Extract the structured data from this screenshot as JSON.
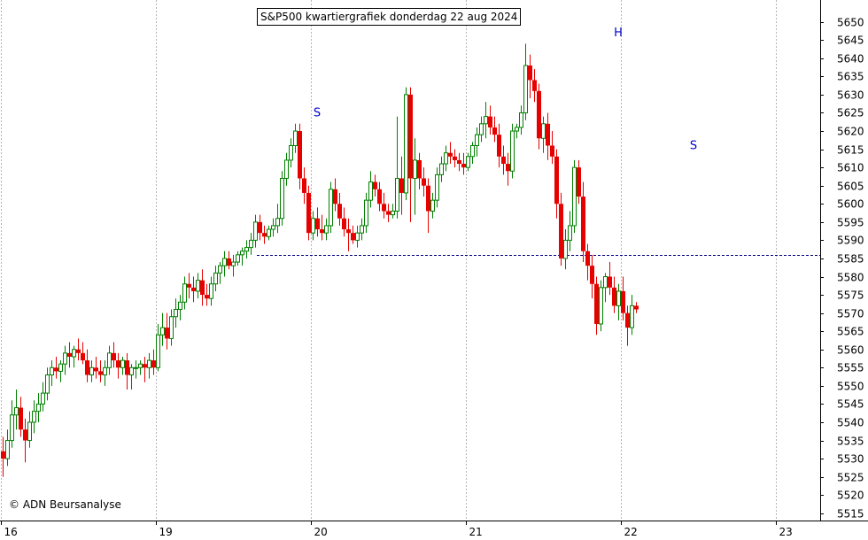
{
  "chart_data": {
    "type": "candlestick",
    "title": "S&P500 kwartiergrafiek donderdag 22 aug 2024",
    "copyright": "© ADN Beursanalyse",
    "ylim": [
      5513,
      5656
    ],
    "y_ticks": [
      5515,
      5520,
      5525,
      5530,
      5535,
      5540,
      5545,
      5550,
      5555,
      5560,
      5565,
      5570,
      5575,
      5580,
      5585,
      5590,
      5595,
      5600,
      5605,
      5610,
      5615,
      5620,
      5625,
      5630,
      5635,
      5640,
      5645,
      5650
    ],
    "x_day_labels": [
      {
        "label": "16",
        "index": 0
      },
      {
        "label": "19",
        "index": 35
      },
      {
        "label": "20",
        "index": 70
      },
      {
        "label": "21",
        "index": 105
      },
      {
        "label": "22",
        "index": 140
      },
      {
        "label": "23",
        "index": 175
      }
    ],
    "reference_line": 5586,
    "annotations": [
      {
        "text": "S",
        "index": 71,
        "value": 5624
      },
      {
        "text": "H",
        "index": 139,
        "value": 5646
      },
      {
        "text": "S",
        "index": 156,
        "value": 5615
      }
    ],
    "colors": {
      "up": "#008000",
      "down": "#e60000",
      "annotation": "#0000cc",
      "grid": "#b4b4b4",
      "reference": "#000080"
    },
    "ohlc": [
      [
        5532,
        5536,
        5525,
        5530
      ],
      [
        5530,
        5538,
        5528,
        5535
      ],
      [
        5535,
        5546,
        5533,
        5542
      ],
      [
        5542,
        5549,
        5538,
        5544
      ],
      [
        5544,
        5547,
        5536,
        5538
      ],
      [
        5538,
        5541,
        5529,
        5535
      ],
      [
        5535,
        5543,
        5533,
        5540
      ],
      [
        5540,
        5546,
        5537,
        5543
      ],
      [
        5543,
        5548,
        5540,
        5545
      ],
      [
        5545,
        5551,
        5543,
        5548
      ],
      [
        5548,
        5555,
        5546,
        5553
      ],
      [
        5553,
        5557,
        5550,
        5555
      ],
      [
        5555,
        5558,
        5552,
        5554
      ],
      [
        5554,
        5557,
        5551,
        5556
      ],
      [
        5556,
        5561,
        5553,
        5559
      ],
      [
        5559,
        5562,
        5555,
        5558
      ],
      [
        5558,
        5561,
        5555,
        5560
      ],
      [
        5560,
        5563,
        5557,
        5559
      ],
      [
        5559,
        5562,
        5556,
        5557
      ],
      [
        5557,
        5560,
        5551,
        5553
      ],
      [
        5553,
        5557,
        5551,
        5555
      ],
      [
        5555,
        5558,
        5552,
        5554
      ],
      [
        5554,
        5557,
        5551,
        5553
      ],
      [
        5553,
        5557,
        5550,
        5555
      ],
      [
        5555,
        5561,
        5553,
        5559
      ],
      [
        5559,
        5562,
        5555,
        5557
      ],
      [
        5557,
        5559,
        5552,
        5555
      ],
      [
        5555,
        5558,
        5553,
        5557
      ],
      [
        5557,
        5559,
        5549,
        5553
      ],
      [
        5553,
        5556,
        5549,
        5555
      ],
      [
        5555,
        5557,
        5552,
        5555
      ],
      [
        5555,
        5557,
        5553,
        5556
      ],
      [
        5556,
        5558,
        5551,
        5555
      ],
      [
        5555,
        5559,
        5552,
        5557
      ],
      [
        5557,
        5560,
        5553,
        5555
      ],
      [
        5555,
        5567,
        5554,
        5564
      ],
      [
        5564,
        5570,
        5561,
        5566
      ],
      [
        5566,
        5570,
        5560,
        5563
      ],
      [
        5563,
        5571,
        5561,
        5569
      ],
      [
        5569,
        5574,
        5566,
        5571
      ],
      [
        5571,
        5575,
        5568,
        5573
      ],
      [
        5573,
        5580,
        5571,
        5578
      ],
      [
        5578,
        5581,
        5574,
        5577
      ],
      [
        5577,
        5580,
        5573,
        5576
      ],
      [
        5576,
        5581,
        5574,
        5579
      ],
      [
        5579,
        5582,
        5572,
        5575
      ],
      [
        5575,
        5578,
        5572,
        5574
      ],
      [
        5574,
        5580,
        5572,
        5578
      ],
      [
        5578,
        5583,
        5576,
        5581
      ],
      [
        5581,
        5584,
        5578,
        5583
      ],
      [
        5583,
        5587,
        5580,
        5585
      ],
      [
        5585,
        5587,
        5582,
        5583
      ],
      [
        5583,
        5586,
        5580,
        5584
      ],
      [
        5584,
        5587,
        5583,
        5586
      ],
      [
        5586,
        5588,
        5583,
        5587
      ],
      [
        5587,
        5590,
        5585,
        5588
      ],
      [
        5588,
        5592,
        5586,
        5590
      ],
      [
        5590,
        5597,
        5588,
        5595
      ],
      [
        5595,
        5597,
        5590,
        5592
      ],
      [
        5592,
        5594,
        5589,
        5591
      ],
      [
        5591,
        5594,
        5590,
        5593
      ],
      [
        5593,
        5596,
        5591,
        5594
      ],
      [
        5594,
        5600,
        5592,
        5596
      ],
      [
        5596,
        5609,
        5594,
        5607
      ],
      [
        5607,
        5614,
        5605,
        5612
      ],
      [
        5612,
        5618,
        5610,
        5616
      ],
      [
        5616,
        5622,
        5614,
        5620
      ],
      [
        5620,
        5622,
        5604,
        5607
      ],
      [
        5607,
        5610,
        5600,
        5603
      ],
      [
        5603,
        5605,
        5590,
        5592
      ],
      [
        5592,
        5598,
        5590,
        5596
      ],
      [
        5596,
        5599,
        5591,
        5593
      ],
      [
        5593,
        5597,
        5590,
        5592
      ],
      [
        5592,
        5596,
        5590,
        5594
      ],
      [
        5594,
        5606,
        5592,
        5604
      ],
      [
        5604,
        5607,
        5598,
        5600
      ],
      [
        5600,
        5603,
        5594,
        5596
      ],
      [
        5596,
        5599,
        5591,
        5593
      ],
      [
        5593,
        5596,
        5587,
        5592
      ],
      [
        5592,
        5594,
        5589,
        5590
      ],
      [
        5590,
        5594,
        5588,
        5592
      ],
      [
        5592,
        5596,
        5590,
        5594
      ],
      [
        5594,
        5603,
        5592,
        5601
      ],
      [
        5601,
        5609,
        5599,
        5606
      ],
      [
        5606,
        5608,
        5602,
        5604
      ],
      [
        5604,
        5606,
        5598,
        5600
      ],
      [
        5600,
        5603,
        5596,
        5598
      ],
      [
        5598,
        5600,
        5595,
        5597
      ],
      [
        5597,
        5600,
        5596,
        5598
      ],
      [
        5598,
        5624,
        5596,
        5607
      ],
      [
        5607,
        5613,
        5597,
        5603
      ],
      [
        5603,
        5632,
        5601,
        5630
      ],
      [
        5630,
        5632,
        5595,
        5607
      ],
      [
        5607,
        5618,
        5597,
        5612
      ],
      [
        5612,
        5614,
        5604,
        5607
      ],
      [
        5607,
        5610,
        5602,
        5605
      ],
      [
        5605,
        5607,
        5592,
        5598
      ],
      [
        5598,
        5603,
        5596,
        5601
      ],
      [
        5601,
        5610,
        5599,
        5608
      ],
      [
        5608,
        5613,
        5606,
        5611
      ],
      [
        5611,
        5616,
        5609,
        5614
      ],
      [
        5614,
        5617,
        5611,
        5613
      ],
      [
        5613,
        5615,
        5610,
        5612
      ],
      [
        5612,
        5614,
        5609,
        5611
      ],
      [
        5611,
        5614,
        5608,
        5610
      ],
      [
        5610,
        5614,
        5609,
        5613
      ],
      [
        5613,
        5617,
        5611,
        5616
      ],
      [
        5616,
        5621,
        5613,
        5619
      ],
      [
        5619,
        5624,
        5617,
        5622
      ],
      [
        5622,
        5628,
        5618,
        5624
      ],
      [
        5624,
        5627,
        5619,
        5621
      ],
      [
        5621,
        5624,
        5617,
        5619
      ],
      [
        5619,
        5622,
        5610,
        5613
      ],
      [
        5613,
        5616,
        5608,
        5611
      ],
      [
        5611,
        5614,
        5605,
        5609
      ],
      [
        5609,
        5622,
        5607,
        5620
      ],
      [
        5620,
        5622,
        5618,
        5621
      ],
      [
        5621,
        5627,
        5619,
        5625
      ],
      [
        5625,
        5644,
        5623,
        5638
      ],
      [
        5638,
        5641,
        5629,
        5634
      ],
      [
        5634,
        5637,
        5628,
        5631
      ],
      [
        5631,
        5633,
        5615,
        5618
      ],
      [
        5618,
        5624,
        5614,
        5622
      ],
      [
        5622,
        5625,
        5612,
        5616
      ],
      [
        5616,
        5620,
        5611,
        5613
      ],
      [
        5613,
        5615,
        5596,
        5600
      ],
      [
        5600,
        5603,
        5583,
        5585
      ],
      [
        5585,
        5593,
        5582,
        5590
      ],
      [
        5590,
        5598,
        5587,
        5594
      ],
      [
        5594,
        5612,
        5592,
        5610
      ],
      [
        5610,
        5612,
        5600,
        5602
      ],
      [
        5602,
        5606,
        5584,
        5587
      ],
      [
        5587,
        5589,
        5579,
        5583
      ],
      [
        5583,
        5586,
        5574,
        5578
      ],
      [
        5578,
        5580,
        5564,
        5567
      ],
      [
        5567,
        5579,
        5565,
        5577
      ],
      [
        5577,
        5581,
        5573,
        5580
      ],
      [
        5580,
        5584,
        5575,
        5577
      ],
      [
        5577,
        5580,
        5570,
        5572
      ],
      [
        5572,
        5578,
        5568,
        5576
      ],
      [
        5576,
        5580,
        5568,
        5570
      ],
      [
        5570,
        5572,
        5561,
        5566
      ],
      [
        5566,
        5575,
        5564,
        5572
      ],
      [
        5572,
        5573,
        5570,
        5571
      ]
    ]
  }
}
